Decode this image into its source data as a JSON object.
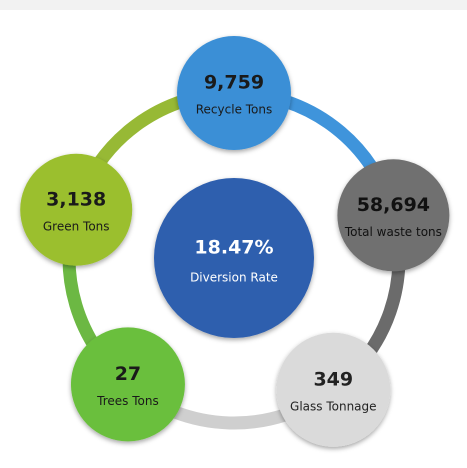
{
  "center": {
    "value": "18.47%",
    "label": "Diversion Rate"
  },
  "nodes": [
    {
      "value": "9,759",
      "label": "Recycle Tons"
    },
    {
      "value": "58,694",
      "label": "Total waste tons"
    },
    {
      "value": "349",
      "label": "Glass Tonnage"
    },
    {
      "value": "27",
      "label": "Trees Tons"
    },
    {
      "value": "3,138",
      "label": "Green Tons"
    }
  ]
}
